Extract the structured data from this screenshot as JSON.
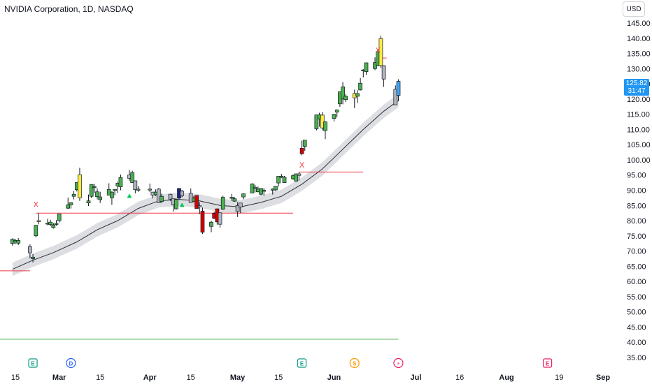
{
  "header": {
    "title": "NVIDIA Corporation, 1D, NASDAQ",
    "currency": "USD"
  },
  "last_price": {
    "value": "125.82",
    "countdown": "31:47"
  },
  "colors": {
    "green": "#4caf50",
    "red": "#d50000",
    "yellow": "#ffeb3b",
    "gray": "#b2b5be",
    "blue": "#42a5f5",
    "navy": "#1a237e",
    "band": "#d6d8dd",
    "level_line": "#f23645",
    "support_line": "#4caf50"
  },
  "chart_data": {
    "type": "candlestick",
    "title": "NVIDIA Corporation, 1D, NASDAQ",
    "ylim": [
      32,
      147
    ],
    "y_ticks": [
      "145.00",
      "140.00",
      "135.00",
      "130.00",
      "125.00",
      "120.00",
      "115.00",
      "110.00",
      "105.00",
      "100.00",
      "95.00",
      "90.00",
      "85.00",
      "80.00",
      "75.00",
      "70.00",
      "65.00",
      "60.00",
      "55.00",
      "50.00",
      "45.00",
      "40.00",
      "35.00"
    ],
    "x_ticks": [
      {
        "label": "15",
        "bold": false,
        "x": "2024-02-15"
      },
      {
        "label": "Mar",
        "bold": true,
        "x": "2024-03-01"
      },
      {
        "label": "15",
        "bold": false,
        "x": "2024-03-15"
      },
      {
        "label": "Apr",
        "bold": true,
        "x": "2024-04-01"
      },
      {
        "label": "15",
        "bold": false,
        "x": "2024-04-15"
      },
      {
        "label": "May",
        "bold": true,
        "x": "2024-05-01"
      },
      {
        "label": "15",
        "bold": false,
        "x": "2024-05-15"
      },
      {
        "label": "Jun",
        "bold": true,
        "x": "2024-06-03"
      },
      {
        "label": "Jul",
        "bold": true,
        "x": "2024-07-01"
      },
      {
        "label": "16",
        "bold": false,
        "x": "2024-07-16"
      },
      {
        "label": "Aug",
        "bold": true,
        "x": "2024-08-01"
      },
      {
        "label": "19",
        "bold": false,
        "x": "2024-08-19"
      },
      {
        "label": "Sep",
        "bold": true,
        "x": "2024-09-03"
      }
    ],
    "candles": [
      {
        "d": "2024-02-14",
        "o": 72.5,
        "h": 74.2,
        "l": 71.8,
        "c": 73.9,
        "color": "green"
      },
      {
        "d": "2024-02-15",
        "o": 73.0,
        "h": 74.0,
        "l": 72.3,
        "c": 73.5,
        "color": "green"
      },
      {
        "d": "2024-02-16",
        "o": 73.5,
        "h": 74.3,
        "l": 72.0,
        "c": 72.6,
        "color": "green"
      },
      {
        "d": "2024-02-20",
        "o": 71.5,
        "h": 72.2,
        "l": 67.6,
        "c": 69.4,
        "color": "gray"
      },
      {
        "d": "2024-02-21",
        "o": 68.0,
        "h": 69.0,
        "l": 66.3,
        "c": 67.5,
        "color": "green"
      },
      {
        "d": "2024-02-22",
        "o": 75.0,
        "h": 78.5,
        "l": 74.5,
        "c": 78.5,
        "color": "green"
      },
      {
        "d": "2024-02-23",
        "o": 80.0,
        "h": 82.4,
        "l": 78.8,
        "c": 80.0,
        "color": "yellow"
      },
      {
        "d": "2024-02-26",
        "o": 79.2,
        "h": 80.6,
        "l": 78.5,
        "c": 79.0,
        "color": "green"
      },
      {
        "d": "2024-02-27",
        "o": 79.5,
        "h": 80.3,
        "l": 78.2,
        "c": 78.7,
        "color": "green"
      },
      {
        "d": "2024-02-28",
        "o": 78.6,
        "h": 79.2,
        "l": 77.4,
        "c": 77.7,
        "color": "green"
      },
      {
        "d": "2024-02-29",
        "o": 79.0,
        "h": 80.2,
        "l": 78.3,
        "c": 79.1,
        "color": "green"
      },
      {
        "d": "2024-03-01",
        "o": 80.0,
        "h": 82.3,
        "l": 79.4,
        "c": 82.2,
        "color": "green"
      },
      {
        "d": "2024-03-04",
        "o": 84.1,
        "h": 87.6,
        "l": 83.8,
        "c": 85.2,
        "color": "green"
      },
      {
        "d": "2024-03-05",
        "o": 85.2,
        "h": 86.1,
        "l": 84.0,
        "c": 85.9,
        "color": "green"
      },
      {
        "d": "2024-03-06",
        "o": 88.0,
        "h": 89.8,
        "l": 87.0,
        "c": 88.7,
        "color": "green"
      },
      {
        "d": "2024-03-07",
        "o": 90.2,
        "h": 92.6,
        "l": 89.6,
        "c": 92.6,
        "color": "green"
      },
      {
        "d": "2024-03-08",
        "o": 95.1,
        "h": 97.4,
        "l": 86.5,
        "c": 87.5,
        "color": "yellow"
      },
      {
        "d": "2024-03-11",
        "o": 86.5,
        "h": 88.6,
        "l": 84.8,
        "c": 85.8,
        "color": "green"
      },
      {
        "d": "2024-03-12",
        "o": 88.0,
        "h": 92.0,
        "l": 87.4,
        "c": 91.9,
        "color": "green"
      },
      {
        "d": "2024-03-13",
        "o": 91.2,
        "h": 92.1,
        "l": 89.0,
        "c": 90.9,
        "color": "green"
      },
      {
        "d": "2024-03-14",
        "o": 89.5,
        "h": 90.6,
        "l": 87.0,
        "c": 87.9,
        "color": "green"
      },
      {
        "d": "2024-03-15",
        "o": 86.9,
        "h": 89.5,
        "l": 85.8,
        "c": 87.8,
        "color": "green"
      },
      {
        "d": "2024-03-18",
        "o": 90.3,
        "h": 92.3,
        "l": 88.6,
        "c": 88.4,
        "color": "green"
      },
      {
        "d": "2024-03-19",
        "o": 87.5,
        "h": 89.6,
        "l": 85.2,
        "c": 89.4,
        "color": "green"
      },
      {
        "d": "2024-03-20",
        "o": 90.2,
        "h": 90.4,
        "l": 88.3,
        "c": 90.3,
        "color": "green"
      },
      {
        "d": "2024-03-21",
        "o": 92.3,
        "h": 92.8,
        "l": 89.1,
        "c": 91.4,
        "color": "green"
      },
      {
        "d": "2024-03-22",
        "o": 91.1,
        "h": 95.2,
        "l": 90.0,
        "c": 94.2,
        "color": "green"
      },
      {
        "d": "2024-03-25",
        "o": 93.9,
        "h": 96.7,
        "l": 93.0,
        "c": 95.0,
        "color": "gray"
      },
      {
        "d": "2024-03-26",
        "o": 95.8,
        "h": 96.4,
        "l": 92.5,
        "c": 92.5,
        "color": "green"
      },
      {
        "d": "2024-03-27",
        "o": 93.1,
        "h": 93.2,
        "l": 89.0,
        "c": 90.2,
        "color": "gray"
      },
      {
        "d": "2024-03-28",
        "o": 90.0,
        "h": 91.4,
        "l": 89.5,
        "c": 90.4,
        "color": "green"
      },
      {
        "d": "2024-04-01",
        "o": 90.3,
        "h": 92.2,
        "l": 89.4,
        "c": 90.4,
        "color": "green"
      },
      {
        "d": "2024-04-02",
        "o": 88.4,
        "h": 89.4,
        "l": 87.3,
        "c": 89.4,
        "color": "gray"
      },
      {
        "d": "2024-04-03",
        "o": 88.5,
        "h": 90.3,
        "l": 88.1,
        "c": 89.4,
        "color": "green"
      },
      {
        "d": "2024-04-04",
        "o": 90.4,
        "h": 90.7,
        "l": 85.9,
        "c": 85.9,
        "color": "gray"
      },
      {
        "d": "2024-04-05",
        "o": 86.3,
        "h": 88.9,
        "l": 85.8,
        "c": 88.0,
        "color": "green"
      },
      {
        "d": "2024-04-08",
        "o": 88.7,
        "h": 88.8,
        "l": 86.5,
        "c": 87.1,
        "color": "gray"
      },
      {
        "d": "2024-04-09",
        "o": 87.2,
        "h": 87.3,
        "l": 83.0,
        "c": 85.3,
        "color": "gray"
      },
      {
        "d": "2024-04-10",
        "o": 83.9,
        "h": 87.4,
        "l": 83.6,
        "c": 87.0,
        "color": "green"
      },
      {
        "d": "2024-04-11",
        "o": 87.4,
        "h": 90.7,
        "l": 87.1,
        "c": 90.6,
        "color": "navy"
      },
      {
        "d": "2024-04-12",
        "o": 89.7,
        "h": 90.1,
        "l": 87.7,
        "c": 88.2,
        "color": "gray"
      },
      {
        "d": "2024-04-15",
        "o": 89.0,
        "h": 90.6,
        "l": 85.9,
        "c": 86.0,
        "color": "gray"
      },
      {
        "d": "2024-04-16",
        "o": 86.4,
        "h": 88.1,
        "l": 86.0,
        "c": 87.4,
        "color": "green"
      },
      {
        "d": "2024-04-17",
        "o": 88.3,
        "h": 88.4,
        "l": 83.9,
        "c": 84.0,
        "color": "red"
      },
      {
        "d": "2024-04-18",
        "o": 84.9,
        "h": 86.1,
        "l": 82.1,
        "c": 84.6,
        "color": "gray"
      },
      {
        "d": "2024-04-19",
        "o": 83.1,
        "h": 84.3,
        "l": 75.6,
        "c": 76.2,
        "color": "red"
      },
      {
        "d": "2024-04-22",
        "o": 78.1,
        "h": 80.0,
        "l": 76.2,
        "c": 79.5,
        "color": "green"
      },
      {
        "d": "2024-04-23",
        "o": 80.8,
        "h": 82.9,
        "l": 80.5,
        "c": 82.4,
        "color": "red"
      },
      {
        "d": "2024-04-24",
        "o": 83.9,
        "h": 84.0,
        "l": 78.7,
        "c": 79.6,
        "color": "red"
      },
      {
        "d": "2024-04-25",
        "o": 78.8,
        "h": 82.7,
        "l": 77.7,
        "c": 82.6,
        "color": "gray"
      },
      {
        "d": "2024-04-26",
        "o": 83.8,
        "h": 88.2,
        "l": 83.5,
        "c": 87.7,
        "color": "green"
      },
      {
        "d": "2024-04-29",
        "o": 87.5,
        "h": 88.8,
        "l": 86.5,
        "c": 87.7,
        "color": "green"
      },
      {
        "d": "2024-04-30",
        "o": 87.2,
        "h": 87.7,
        "l": 86.2,
        "c": 86.4,
        "color": "green"
      },
      {
        "d": "2024-05-01",
        "o": 85.0,
        "h": 86.1,
        "l": 81.2,
        "c": 83.0,
        "color": "gray"
      },
      {
        "d": "2024-05-02",
        "o": 84.5,
        "h": 85.8,
        "l": 82.5,
        "c": 85.8,
        "color": "gray"
      },
      {
        "d": "2024-05-03",
        "o": 87.8,
        "h": 89.0,
        "l": 87.0,
        "c": 88.8,
        "color": "green"
      },
      {
        "d": "2024-05-06",
        "o": 89.1,
        "h": 92.3,
        "l": 89.0,
        "c": 92.1,
        "color": "green"
      },
      {
        "d": "2024-05-07",
        "o": 91.0,
        "h": 91.8,
        "l": 89.3,
        "c": 90.5,
        "color": "green"
      },
      {
        "d": "2024-05-08",
        "o": 89.5,
        "h": 91.2,
        "l": 89.3,
        "c": 90.4,
        "color": "green"
      },
      {
        "d": "2024-05-09",
        "o": 90.6,
        "h": 90.7,
        "l": 88.3,
        "c": 88.7,
        "color": "green"
      },
      {
        "d": "2024-05-10",
        "o": 90.0,
        "h": 90.7,
        "l": 88.2,
        "c": 89.9,
        "color": "green"
      },
      {
        "d": "2024-05-13",
        "o": 90.4,
        "h": 90.6,
        "l": 88.6,
        "c": 90.4,
        "color": "green"
      },
      {
        "d": "2024-05-14",
        "o": 90.1,
        "h": 91.4,
        "l": 89.7,
        "c": 91.3,
        "color": "green"
      },
      {
        "d": "2024-05-15",
        "o": 92.4,
        "h": 94.6,
        "l": 91.2,
        "c": 94.6,
        "color": "green"
      },
      {
        "d": "2024-05-16",
        "o": 94.6,
        "h": 95.4,
        "l": 94.0,
        "c": 94.4,
        "color": "green"
      },
      {
        "d": "2024-05-17",
        "o": 94.3,
        "h": 94.7,
        "l": 92.6,
        "c": 92.5,
        "color": "green"
      },
      {
        "d": "2024-05-20",
        "o": 93.8,
        "h": 95.2,
        "l": 93.4,
        "c": 94.8,
        "color": "green"
      },
      {
        "d": "2024-05-21",
        "o": 93.0,
        "h": 95.4,
        "l": 92.9,
        "c": 95.4,
        "color": "green"
      },
      {
        "d": "2024-05-22",
        "o": 95.4,
        "h": 96.0,
        "l": 93.2,
        "c": 94.9,
        "color": "gray"
      },
      {
        "d": "2024-05-23",
        "o": 102.0,
        "h": 106.3,
        "l": 101.5,
        "c": 103.8,
        "color": "red"
      },
      {
        "d": "2024-05-24",
        "o": 104.4,
        "h": 106.5,
        "l": 103.0,
        "c": 106.5,
        "color": "green"
      },
      {
        "d": "2024-05-28",
        "o": 110.2,
        "h": 114.9,
        "l": 109.7,
        "c": 114.8,
        "color": "green"
      },
      {
        "d": "2024-05-29",
        "o": 113.5,
        "h": 115.5,
        "l": 110.9,
        "c": 114.8,
        "color": "green"
      },
      {
        "d": "2024-05-30",
        "o": 114.7,
        "h": 115.8,
        "l": 109.7,
        "c": 110.5,
        "color": "yellow"
      },
      {
        "d": "2024-05-31",
        "o": 112.5,
        "h": 112.7,
        "l": 106.8,
        "c": 109.6,
        "color": "green"
      },
      {
        "d": "2024-06-03",
        "o": 113.6,
        "h": 115.0,
        "l": 112.6,
        "c": 115.0,
        "color": "green"
      },
      {
        "d": "2024-06-04",
        "o": 115.7,
        "h": 116.6,
        "l": 114.0,
        "c": 116.4,
        "color": "green"
      },
      {
        "d": "2024-06-05",
        "o": 118.4,
        "h": 122.4,
        "l": 117.4,
        "c": 122.4,
        "color": "green"
      },
      {
        "d": "2024-06-06",
        "o": 124.0,
        "h": 125.6,
        "l": 118.3,
        "c": 120.0,
        "color": "green"
      },
      {
        "d": "2024-06-07",
        "o": 119.8,
        "h": 121.7,
        "l": 119.0,
        "c": 120.9,
        "color": "green"
      },
      {
        "d": "2024-06-10",
        "o": 120.4,
        "h": 123.1,
        "l": 117.0,
        "c": 121.8,
        "color": "yellow"
      },
      {
        "d": "2024-06-11",
        "o": 121.8,
        "h": 122.9,
        "l": 118.7,
        "c": 120.9,
        "color": "green"
      },
      {
        "d": "2024-06-12",
        "o": 123.0,
        "h": 126.9,
        "l": 122.8,
        "c": 125.2,
        "color": "green"
      },
      {
        "d": "2024-06-13",
        "o": 129.4,
        "h": 129.8,
        "l": 127.1,
        "c": 129.6,
        "color": "green"
      },
      {
        "d": "2024-06-14",
        "o": 129.0,
        "h": 132.0,
        "l": 128.0,
        "c": 131.9,
        "color": "green"
      },
      {
        "d": "2024-06-17",
        "o": 132.0,
        "h": 133.7,
        "l": 129.5,
        "c": 130.0,
        "color": "green"
      },
      {
        "d": "2024-06-18",
        "o": 131.1,
        "h": 135.6,
        "l": 130.8,
        "c": 135.6,
        "color": "green"
      },
      {
        "d": "2024-06-19",
        "o": 131.0,
        "h": 140.8,
        "l": 130.2,
        "c": 139.9,
        "color": "yellow"
      },
      {
        "d": "2024-06-20",
        "o": 131.0,
        "h": 130.6,
        "l": 124.0,
        "c": 126.6,
        "color": "gray"
      },
      {
        "d": "2024-06-24",
        "o": 123.2,
        "h": 124.5,
        "l": 118.0,
        "c": 118.1,
        "color": "gray"
      },
      {
        "d": "2024-06-25",
        "o": 121.2,
        "h": 126.5,
        "l": 119.3,
        "c": 125.8,
        "color": "blue"
      }
    ],
    "moving_average": [
      {
        "d": "2024-02-14",
        "v": 64.0
      },
      {
        "d": "2024-02-21",
        "v": 67.0
      },
      {
        "d": "2024-02-28",
        "v": 69.5
      },
      {
        "d": "2024-03-07",
        "v": 73.0
      },
      {
        "d": "2024-03-14",
        "v": 77.0
      },
      {
        "d": "2024-03-21",
        "v": 80.0
      },
      {
        "d": "2024-03-28",
        "v": 84.0
      },
      {
        "d": "2024-04-04",
        "v": 86.5
      },
      {
        "d": "2024-04-11",
        "v": 87.0
      },
      {
        "d": "2024-04-18",
        "v": 86.5
      },
      {
        "d": "2024-04-25",
        "v": 85.0
      },
      {
        "d": "2024-05-02",
        "v": 84.5
      },
      {
        "d": "2024-05-09",
        "v": 86.0
      },
      {
        "d": "2024-05-16",
        "v": 88.0
      },
      {
        "d": "2024-05-23",
        "v": 92.0
      },
      {
        "d": "2024-05-30",
        "v": 97.0
      },
      {
        "d": "2024-06-06",
        "v": 103.5
      },
      {
        "d": "2024-06-13",
        "v": 110.0
      },
      {
        "d": "2024-06-20",
        "v": 116.0
      },
      {
        "d": "2024-06-25",
        "v": 119.5
      }
    ],
    "levels": [
      {
        "from": "2024-02-08",
        "to": "2024-02-20",
        "value": 63.5,
        "type": "resistance"
      },
      {
        "from": "2024-02-22",
        "to": "2024-05-20",
        "value": 82.5,
        "type": "resistance"
      },
      {
        "from": "2024-05-22",
        "to": "2024-06-13",
        "value": 96.0,
        "type": "resistance"
      },
      {
        "from": "2024-06-18",
        "to": "2024-06-21",
        "value": 133.5,
        "type": "resistance"
      },
      {
        "from": "2024-02-08",
        "to": "2024-06-25",
        "value": 41.0,
        "type": "support"
      }
    ],
    "x_marks": [
      {
        "d": "2024-02-22",
        "value": 84.5
      },
      {
        "d": "2024-05-23",
        "value": 97.5
      },
      {
        "d": "2024-06-18",
        "value": 135.2
      }
    ],
    "triangles": [
      {
        "d": "2024-03-25",
        "value": 88.2
      },
      {
        "d": "2024-04-12",
        "value": 85.2
      }
    ],
    "events": [
      {
        "d": "2024-02-21",
        "label": "E",
        "color": "#089981"
      },
      {
        "d": "2024-03-05",
        "label": "D",
        "color": "#2962ff"
      },
      {
        "d": "2024-05-23",
        "label": "E",
        "color": "#089981"
      },
      {
        "d": "2024-06-10",
        "label": "S",
        "color": "#ff9800"
      },
      {
        "d": "2024-06-25",
        "label": "⚡",
        "color": "#e91e63"
      },
      {
        "d": "2024-08-15",
        "label": "E",
        "color": "#e91e63"
      }
    ]
  }
}
